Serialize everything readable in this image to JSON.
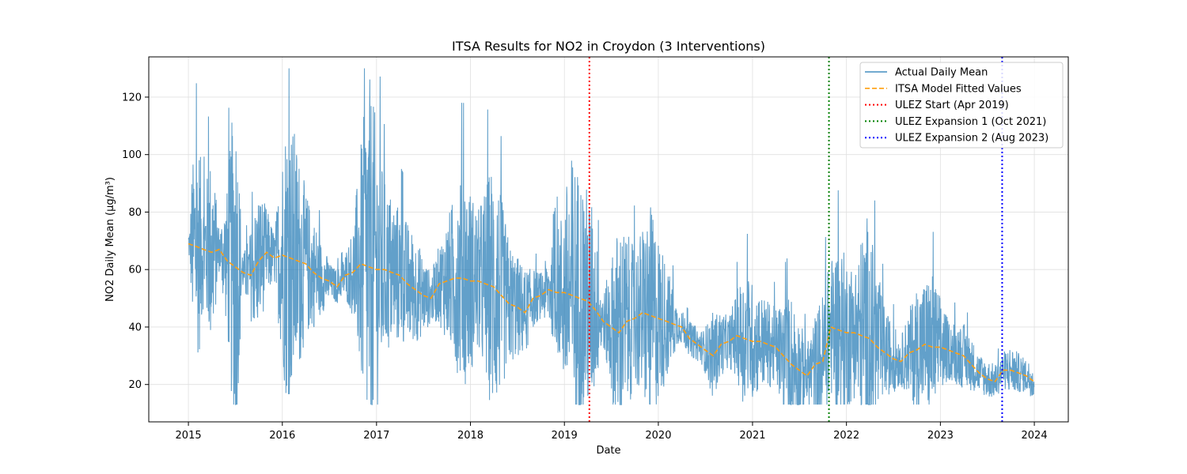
{
  "chart_data": {
    "type": "line",
    "title": "ITSA Results for NO2 in Croydon (3 Interventions)",
    "xlabel": "Date",
    "ylabel": "NO2 Daily Mean (µg/m³)",
    "x_range": [
      "2014-07-31",
      "2024-05-12"
    ],
    "ylim": [
      7,
      134
    ],
    "x_tick_labels": [
      "2015",
      "2016",
      "2017",
      "2018",
      "2019",
      "2020",
      "2021",
      "2022",
      "2023",
      "2024"
    ],
    "y_ticks": [
      20,
      40,
      60,
      80,
      100,
      120
    ],
    "grid": true,
    "legend_position": "top-right",
    "colors": {
      "actual": "#1f77b4",
      "fitted": "#ff9f0f",
      "ulez_start": "#ff0000",
      "ulez_exp1": "#008000",
      "ulez_exp2": "#0000ff",
      "grid": "#e0e0e0",
      "axes": "#000000"
    },
    "series": [
      {
        "name": "Actual Daily Mean",
        "style": "solid",
        "description_points": [
          [
            "2015-01-01",
            35
          ],
          [
            "2015-01-15",
            82
          ],
          [
            "2015-02-10",
            96
          ],
          [
            "2015-03-01",
            70
          ],
          [
            "2015-04-01",
            90
          ],
          [
            "2015-05-01",
            55
          ],
          [
            "2015-06-01",
            75
          ],
          [
            "2015-07-01",
            125
          ],
          [
            "2015-08-01",
            48
          ],
          [
            "2015-09-01",
            60
          ],
          [
            "2015-10-01",
            75
          ],
          [
            "2015-11-01",
            65
          ],
          [
            "2015-12-01",
            55
          ],
          [
            "2016-01-15",
            107
          ],
          [
            "2016-02-15",
            102
          ],
          [
            "2016-04-01",
            75
          ],
          [
            "2016-06-01",
            55
          ],
          [
            "2016-08-01",
            40
          ],
          [
            "2016-10-01",
            60
          ],
          [
            "2016-12-01",
            128
          ],
          [
            "2017-01-01",
            105
          ],
          [
            "2017-02-01",
            80
          ],
          [
            "2017-04-01",
            70
          ],
          [
            "2017-06-01",
            60
          ],
          [
            "2017-08-01",
            45
          ],
          [
            "2017-10-01",
            65
          ],
          [
            "2017-12-01",
            88
          ],
          [
            "2018-02-01",
            70
          ],
          [
            "2018-04-01",
            95
          ],
          [
            "2018-06-01",
            60
          ],
          [
            "2018-08-01",
            50
          ],
          [
            "2018-10-01",
            45
          ],
          [
            "2018-12-01",
            60
          ],
          [
            "2019-02-01",
            98
          ],
          [
            "2019-04-15",
            80
          ],
          [
            "2019-06-01",
            40
          ],
          [
            "2019-08-01",
            75
          ],
          [
            "2019-10-01",
            60
          ],
          [
            "2019-12-01",
            78
          ],
          [
            "2020-02-01",
            55
          ],
          [
            "2020-04-01",
            30
          ],
          [
            "2020-06-01",
            25
          ],
          [
            "2020-08-01",
            40
          ],
          [
            "2020-10-01",
            35
          ],
          [
            "2020-12-01",
            55
          ],
          [
            "2021-02-01",
            45
          ],
          [
            "2021-04-01",
            40
          ],
          [
            "2021-06-01",
            50
          ],
          [
            "2021-08-01",
            30
          ],
          [
            "2021-10-01",
            50
          ],
          [
            "2021-12-01",
            65
          ],
          [
            "2022-02-01",
            55
          ],
          [
            "2022-03-20",
            80
          ],
          [
            "2022-06-01",
            40
          ],
          [
            "2022-08-01",
            30
          ],
          [
            "2022-10-01",
            50
          ],
          [
            "2022-12-01",
            55
          ],
          [
            "2023-02-01",
            35
          ],
          [
            "2023-04-01",
            35
          ],
          [
            "2023-06-01",
            25
          ],
          [
            "2023-08-01",
            22
          ],
          [
            "2023-10-01",
            28
          ],
          [
            "2023-12-31",
            20
          ]
        ]
      },
      {
        "name": "ITSA Model Fitted Values",
        "style": "dashed",
        "points": [
          [
            "2015-01-01",
            69
          ],
          [
            "2015-02-01",
            68
          ],
          [
            "2015-03-01",
            67
          ],
          [
            "2015-04-01",
            66
          ],
          [
            "2015-05-01",
            67
          ],
          [
            "2015-06-01",
            63
          ],
          [
            "2015-07-01",
            61
          ],
          [
            "2015-08-01",
            59
          ],
          [
            "2015-09-01",
            58
          ],
          [
            "2015-10-01",
            63
          ],
          [
            "2015-11-01",
            66
          ],
          [
            "2015-12-01",
            64
          ],
          [
            "2016-01-01",
            65
          ],
          [
            "2016-02-01",
            64
          ],
          [
            "2016-03-01",
            63
          ],
          [
            "2016-04-01",
            62
          ],
          [
            "2016-05-01",
            59
          ],
          [
            "2016-06-01",
            57
          ],
          [
            "2016-07-01",
            56
          ],
          [
            "2016-08-01",
            54
          ],
          [
            "2016-09-01",
            58
          ],
          [
            "2016-10-01",
            59
          ],
          [
            "2016-11-01",
            62
          ],
          [
            "2016-12-01",
            61
          ],
          [
            "2017-01-01",
            60
          ],
          [
            "2017-02-01",
            60
          ],
          [
            "2017-03-01",
            59
          ],
          [
            "2017-04-01",
            58
          ],
          [
            "2017-05-01",
            55
          ],
          [
            "2017-06-01",
            53
          ],
          [
            "2017-07-01",
            51
          ],
          [
            "2017-08-01",
            50
          ],
          [
            "2017-09-01",
            55
          ],
          [
            "2017-10-01",
            56
          ],
          [
            "2017-11-01",
            57
          ],
          [
            "2017-12-01",
            57
          ],
          [
            "2018-01-01",
            56
          ],
          [
            "2018-02-01",
            56
          ],
          [
            "2018-03-01",
            55
          ],
          [
            "2018-04-01",
            54
          ],
          [
            "2018-05-01",
            51
          ],
          [
            "2018-06-01",
            48
          ],
          [
            "2018-07-01",
            47
          ],
          [
            "2018-08-01",
            45
          ],
          [
            "2018-09-01",
            50
          ],
          [
            "2018-10-01",
            51
          ],
          [
            "2018-11-01",
            53
          ],
          [
            "2018-12-01",
            52
          ],
          [
            "2019-01-01",
            52
          ],
          [
            "2019-02-01",
            51
          ],
          [
            "2019-03-01",
            50
          ],
          [
            "2019-04-01",
            49
          ],
          [
            "2019-05-01",
            46
          ],
          [
            "2019-06-01",
            42
          ],
          [
            "2019-07-01",
            40
          ],
          [
            "2019-08-01",
            38
          ],
          [
            "2019-09-01",
            42
          ],
          [
            "2019-10-01",
            43
          ],
          [
            "2019-11-01",
            45
          ],
          [
            "2019-12-01",
            44
          ],
          [
            "2020-01-01",
            43
          ],
          [
            "2020-02-01",
            42
          ],
          [
            "2020-03-01",
            41
          ],
          [
            "2020-04-01",
            40
          ],
          [
            "2020-05-01",
            36
          ],
          [
            "2020-06-01",
            34
          ],
          [
            "2020-07-01",
            32
          ],
          [
            "2020-08-01",
            30
          ],
          [
            "2020-09-01",
            34
          ],
          [
            "2020-10-01",
            35
          ],
          [
            "2020-11-01",
            37
          ],
          [
            "2020-12-01",
            36
          ],
          [
            "2021-01-01",
            35
          ],
          [
            "2021-02-01",
            35
          ],
          [
            "2021-03-01",
            34
          ],
          [
            "2021-04-01",
            33
          ],
          [
            "2021-05-01",
            30
          ],
          [
            "2021-06-01",
            27
          ],
          [
            "2021-07-01",
            25
          ],
          [
            "2021-08-01",
            23
          ],
          [
            "2021-09-01",
            27
          ],
          [
            "2021-10-01",
            28
          ],
          [
            "2021-11-01",
            40
          ],
          [
            "2021-12-01",
            39
          ],
          [
            "2022-01-01",
            38
          ],
          [
            "2022-02-01",
            38
          ],
          [
            "2022-03-01",
            37
          ],
          [
            "2022-04-01",
            36
          ],
          [
            "2022-05-01",
            33
          ],
          [
            "2022-06-01",
            31
          ],
          [
            "2022-07-01",
            29
          ],
          [
            "2022-08-01",
            28
          ],
          [
            "2022-09-01",
            31
          ],
          [
            "2022-10-01",
            32
          ],
          [
            "2022-11-01",
            34
          ],
          [
            "2022-12-01",
            33
          ],
          [
            "2023-01-01",
            33
          ],
          [
            "2023-02-01",
            32
          ],
          [
            "2023-03-01",
            31
          ],
          [
            "2023-04-01",
            30
          ],
          [
            "2023-05-01",
            27
          ],
          [
            "2023-06-01",
            24
          ],
          [
            "2023-07-01",
            22
          ],
          [
            "2023-08-01",
            21
          ],
          [
            "2023-09-01",
            25
          ],
          [
            "2023-10-01",
            25
          ],
          [
            "2023-11-01",
            24
          ],
          [
            "2023-12-01",
            23
          ],
          [
            "2023-12-31",
            21
          ]
        ]
      }
    ],
    "interventions": [
      {
        "name": "ULEZ Start (Apr 2019)",
        "date": "2019-04-08",
        "colorKey": "ulez_start"
      },
      {
        "name": "ULEZ Expansion 1 (Oct 2021)",
        "date": "2021-10-25",
        "colorKey": "ulez_exp1"
      },
      {
        "name": "ULEZ Expansion 2 (Aug 2023)",
        "date": "2023-08-29",
        "colorKey": "ulez_exp2"
      }
    ]
  }
}
